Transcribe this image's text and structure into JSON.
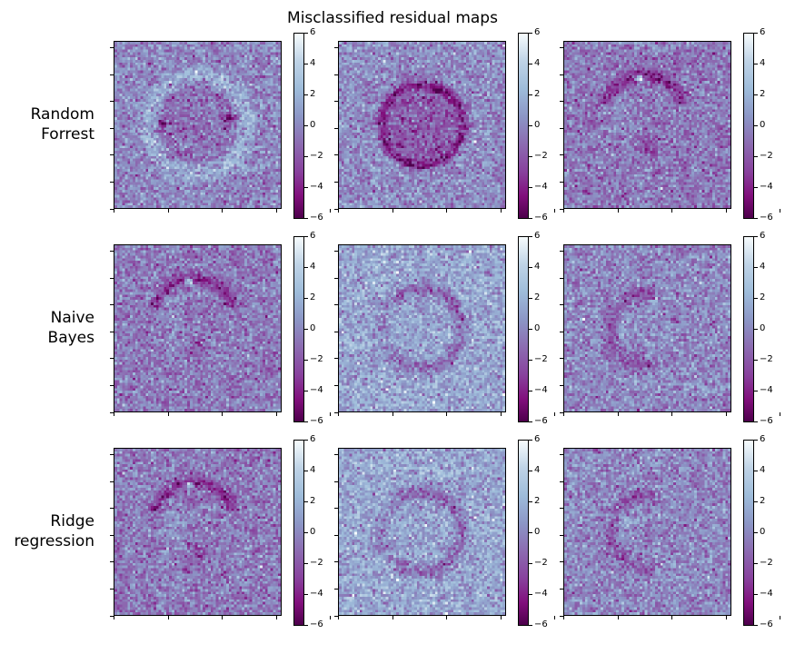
{
  "title": "Misclassified residual maps",
  "rows": [
    {
      "label_lines": [
        "Random",
        "Forrest"
      ]
    },
    {
      "label_lines": [
        "Naive",
        "Bayes"
      ]
    },
    {
      "label_lines": [
        "Ridge",
        "regression"
      ]
    }
  ],
  "colormap": [
    "#4d004b",
    "#810f7c",
    "#88419d",
    "#8c6bb1",
    "#8c96c6",
    "#9ebcda",
    "#bfd3e6",
    "#f7fcfd"
  ],
  "chart_data": {
    "type": "heatmap",
    "title": "Misclassified residual maps",
    "grid_shape": [
      3,
      3
    ],
    "colorbar": {
      "min": -6,
      "max": 6,
      "ticks": [
        "6",
        "4",
        "2",
        "0",
        "−2",
        "−4",
        "−6"
      ]
    },
    "panels": [
      {
        "row": 0,
        "col": 0,
        "pattern": "ring_dark_center_bright_halo",
        "noise_mean": 0.3
      },
      {
        "row": 0,
        "col": 1,
        "pattern": "dark_disk",
        "noise_mean": 0.5
      },
      {
        "row": 0,
        "col": 2,
        "pattern": "bright_spot_arc",
        "noise_mean": -0.3
      },
      {
        "row": 1,
        "col": 0,
        "pattern": "bright_spot_arc",
        "noise_mean": -0.2
      },
      {
        "row": 1,
        "col": 1,
        "pattern": "faint_ring",
        "noise_mean": 1.0
      },
      {
        "row": 1,
        "col": 2,
        "pattern": "faint_arc",
        "noise_mean": 0.3
      },
      {
        "row": 2,
        "col": 0,
        "pattern": "bright_spot_arc",
        "noise_mean": -0.2
      },
      {
        "row": 2,
        "col": 1,
        "pattern": "faint_ring",
        "noise_mean": 1.0
      },
      {
        "row": 2,
        "col": 2,
        "pattern": "faint_arc",
        "noise_mean": 0.3
      }
    ]
  }
}
